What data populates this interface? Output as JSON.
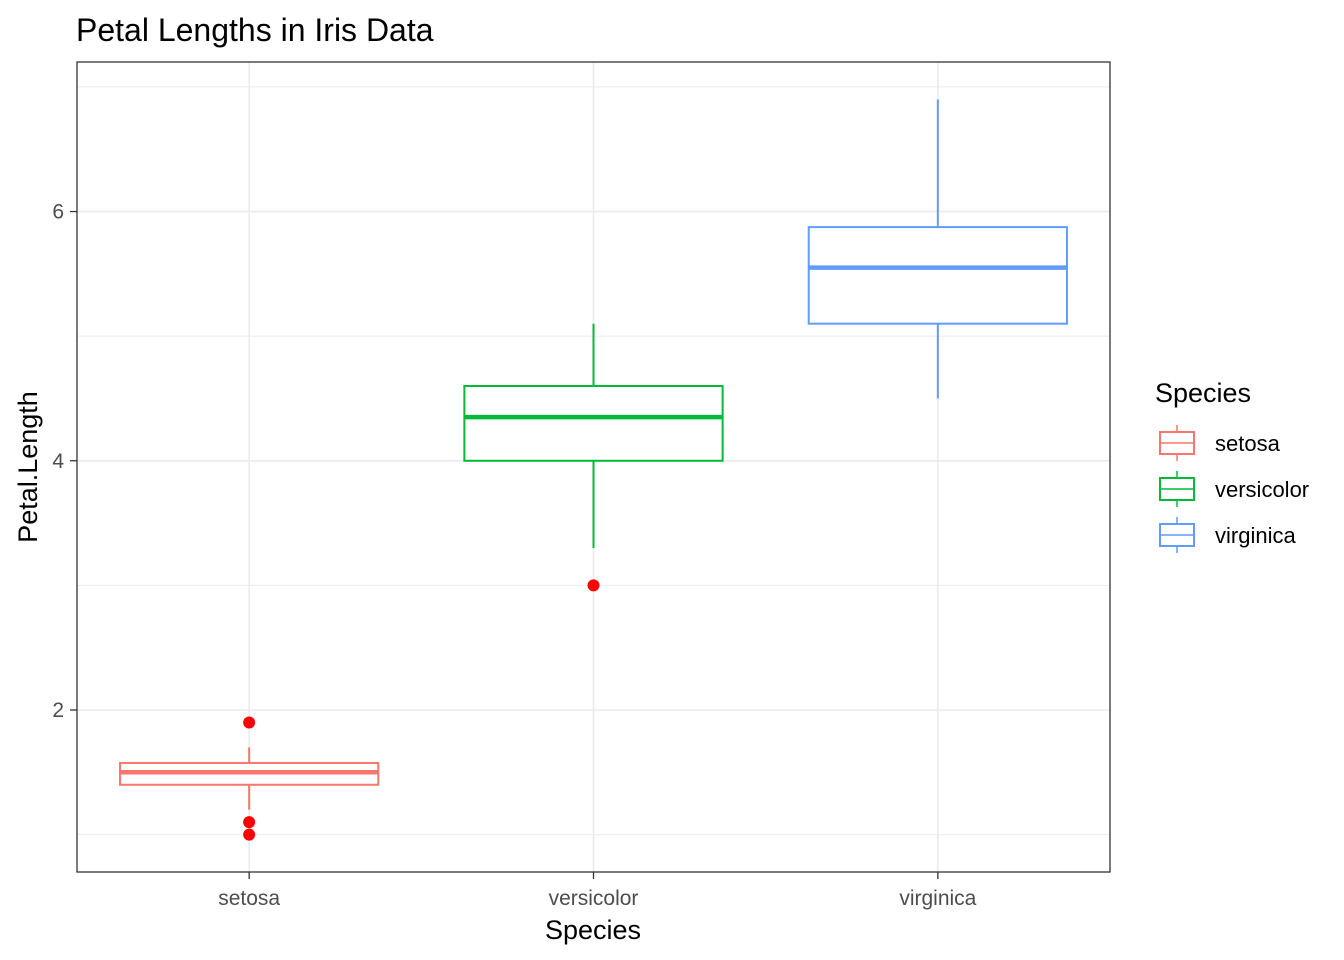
{
  "chart_data": {
    "type": "box",
    "title": "Petal Lengths in Iris Data",
    "xlabel": "Species",
    "ylabel": "Petal.Length",
    "ylim": [
      0.7,
      7.2
    ],
    "yticks": [
      2,
      4,
      6
    ],
    "grid": true,
    "categories": [
      "setosa",
      "versicolor",
      "virginica"
    ],
    "boxes": [
      {
        "category": "setosa",
        "color": "#F8766D",
        "lower_whisker": 1.2,
        "q1": 1.4,
        "median": 1.5,
        "q3": 1.575,
        "upper_whisker": 1.7,
        "outliers": [
          1.0,
          1.1,
          1.9
        ]
      },
      {
        "category": "versicolor",
        "color": "#00BA38",
        "lower_whisker": 3.3,
        "q1": 4.0,
        "median": 4.35,
        "q3": 4.6,
        "upper_whisker": 5.1,
        "outliers": [
          3.0
        ]
      },
      {
        "category": "virginica",
        "color": "#619CFF",
        "lower_whisker": 4.5,
        "q1": 5.1,
        "median": 5.55,
        "q3": 5.875,
        "upper_whisker": 6.9,
        "outliers": []
      }
    ],
    "outlier_color": "#FF0000",
    "legend": {
      "title": "Species",
      "position": "right",
      "entries": [
        "setosa",
        "versicolor",
        "virginica"
      ]
    }
  }
}
